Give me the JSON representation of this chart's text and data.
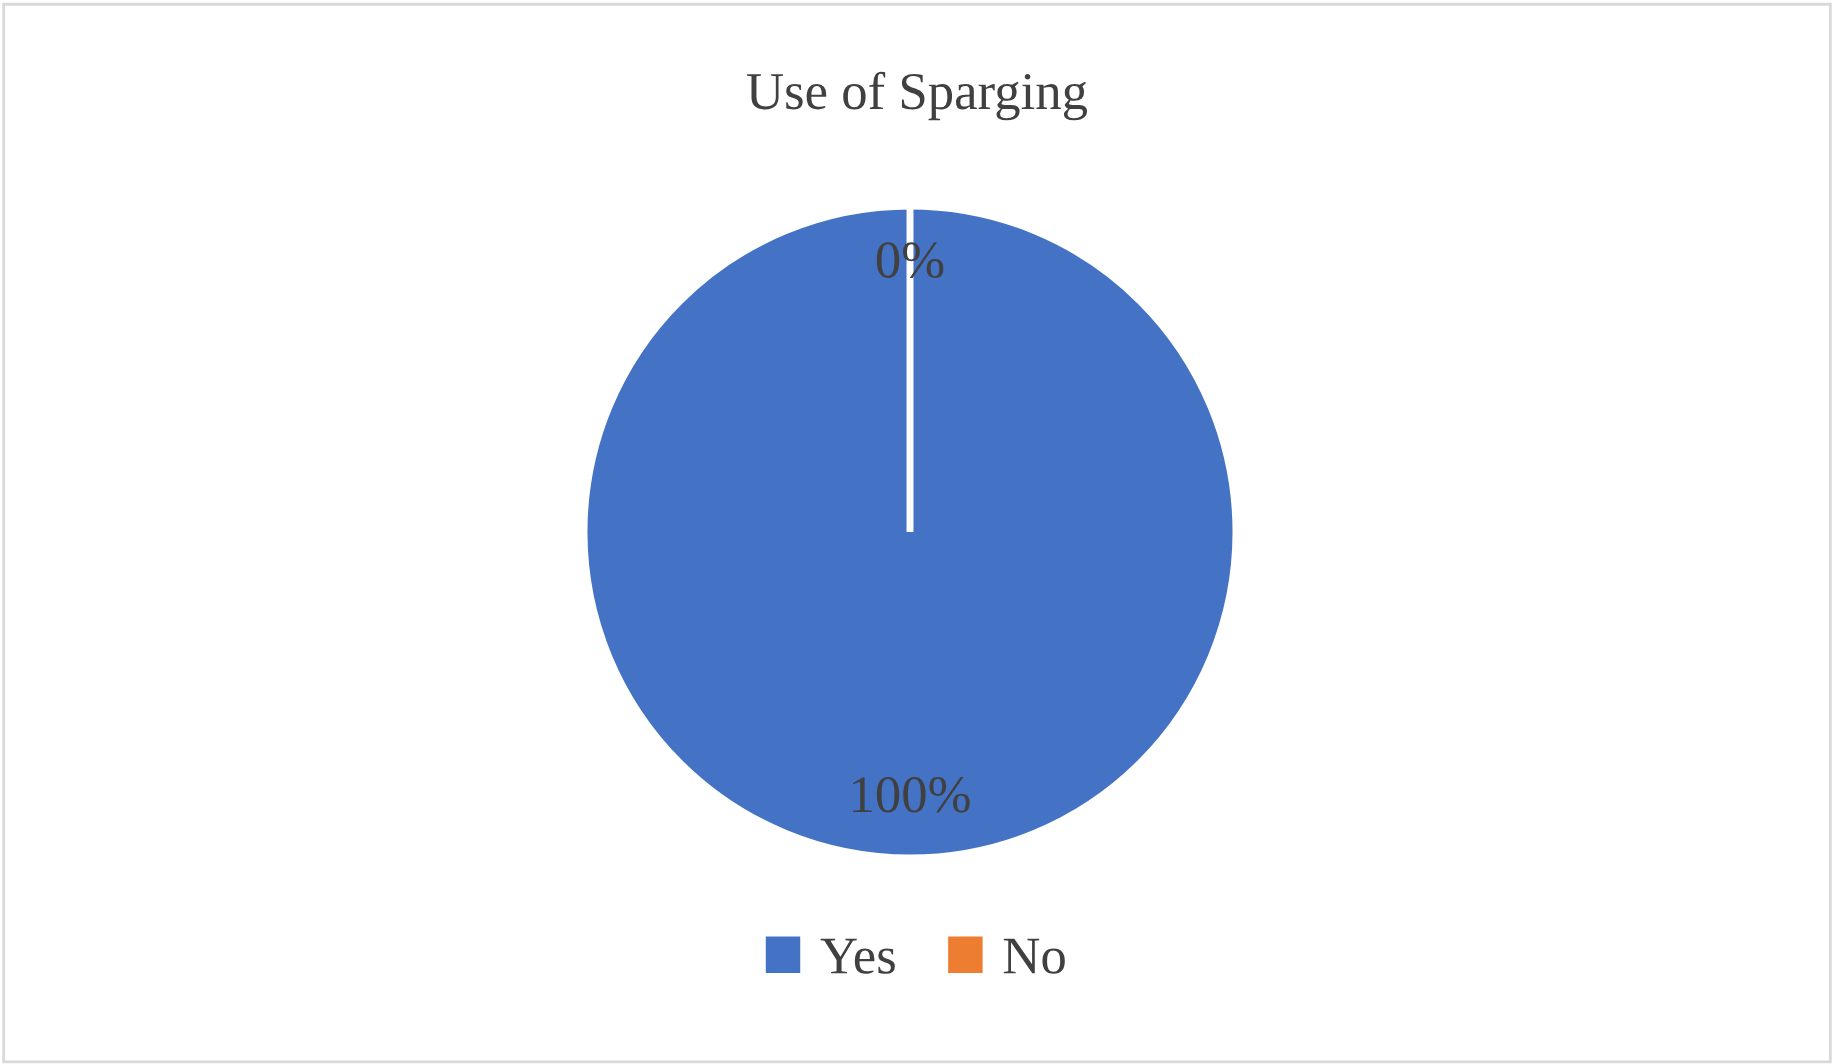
{
  "chart_data": {
    "type": "pie",
    "title": "Use of Sparging",
    "categories": [
      "Yes",
      "No"
    ],
    "values": [
      100,
      0
    ],
    "colors": [
      "#4472c4",
      "#ed7d31"
    ],
    "value_labels": [
      "100%",
      "0%"
    ],
    "legend": "bottom"
  }
}
